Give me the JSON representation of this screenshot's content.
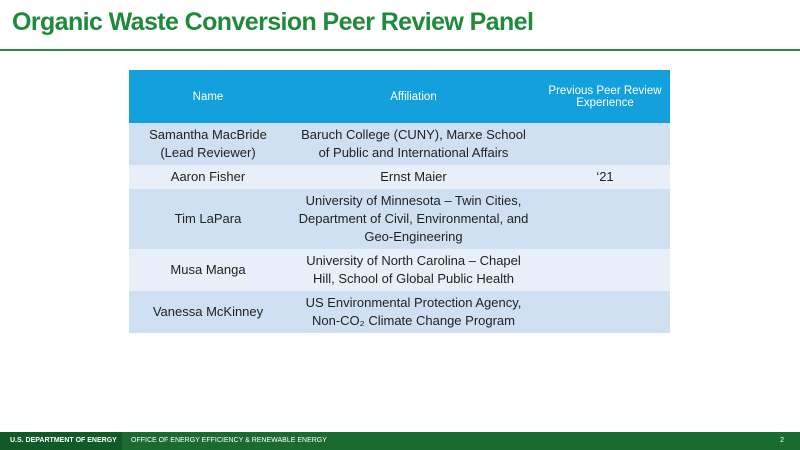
{
  "header": {
    "title": "Organic Waste Conversion Peer Review Panel"
  },
  "table": {
    "columns": [
      "Name",
      "Affiliation",
      "Previous Peer Review Experience"
    ],
    "rows": [
      {
        "name": "Samantha MacBride (Lead Reviewer)",
        "affiliation": "Baruch College (CUNY), Marxe School of Public and International Affairs"
      },
      {
        "name": "Aaron Fisher",
        "affiliation": "Ernst Maier",
        "experience": "‘21"
      },
      {
        "name": "Tim LaPara",
        "affiliation": "University of Minnesota – Twin Cities, Department of Civil, Environmental, and Geo-Engineering"
      },
      {
        "name": "Musa Manga",
        "affiliation": "University of North Carolina – Chapel Hill, School of Global Public Health"
      },
      {
        "name": "Vanessa McKinney",
        "affiliation": "US Environmental Protection Agency, Non-CO₂ Climate Change Program"
      }
    ]
  },
  "footer": {
    "agency": "U.S. DEPARTMENT OF ENERGY",
    "office": "OFFICE OF ENERGY EFFICIENCY & RENEWABLE ENERGY",
    "page": "2"
  }
}
